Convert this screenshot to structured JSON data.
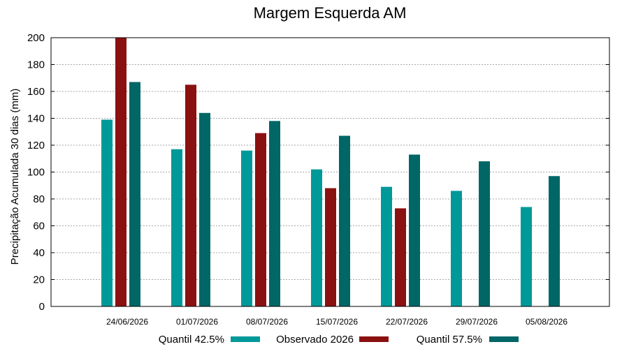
{
  "chart_data": {
    "type": "bar",
    "title": "Margem Esquerda AM",
    "xlabel": "",
    "ylabel": "Precipitação Acumulada 30 dias (mm)",
    "ylim": [
      0,
      200
    ],
    "yticks": [
      0,
      20,
      40,
      60,
      80,
      100,
      120,
      140,
      160,
      180,
      200
    ],
    "grid": true,
    "legend_position": "bottom",
    "categories": [
      "24/06/2026",
      "01/07/2026",
      "08/07/2026",
      "15/07/2026",
      "22/07/2026",
      "29/07/2026",
      "05/08/2026"
    ],
    "series": [
      {
        "name": "Quantil 42.5%",
        "color": "#009999",
        "values": [
          139,
          117,
          116,
          102,
          89,
          86,
          74
        ]
      },
      {
        "name": "Observado 2026",
        "color": "#8B1010",
        "values": [
          200,
          165,
          129,
          88,
          73,
          null,
          null
        ]
      },
      {
        "name": "Quantil 57.5%",
        "color": "#006666",
        "values": [
          167,
          144,
          138,
          127,
          113,
          108,
          97
        ]
      }
    ]
  }
}
